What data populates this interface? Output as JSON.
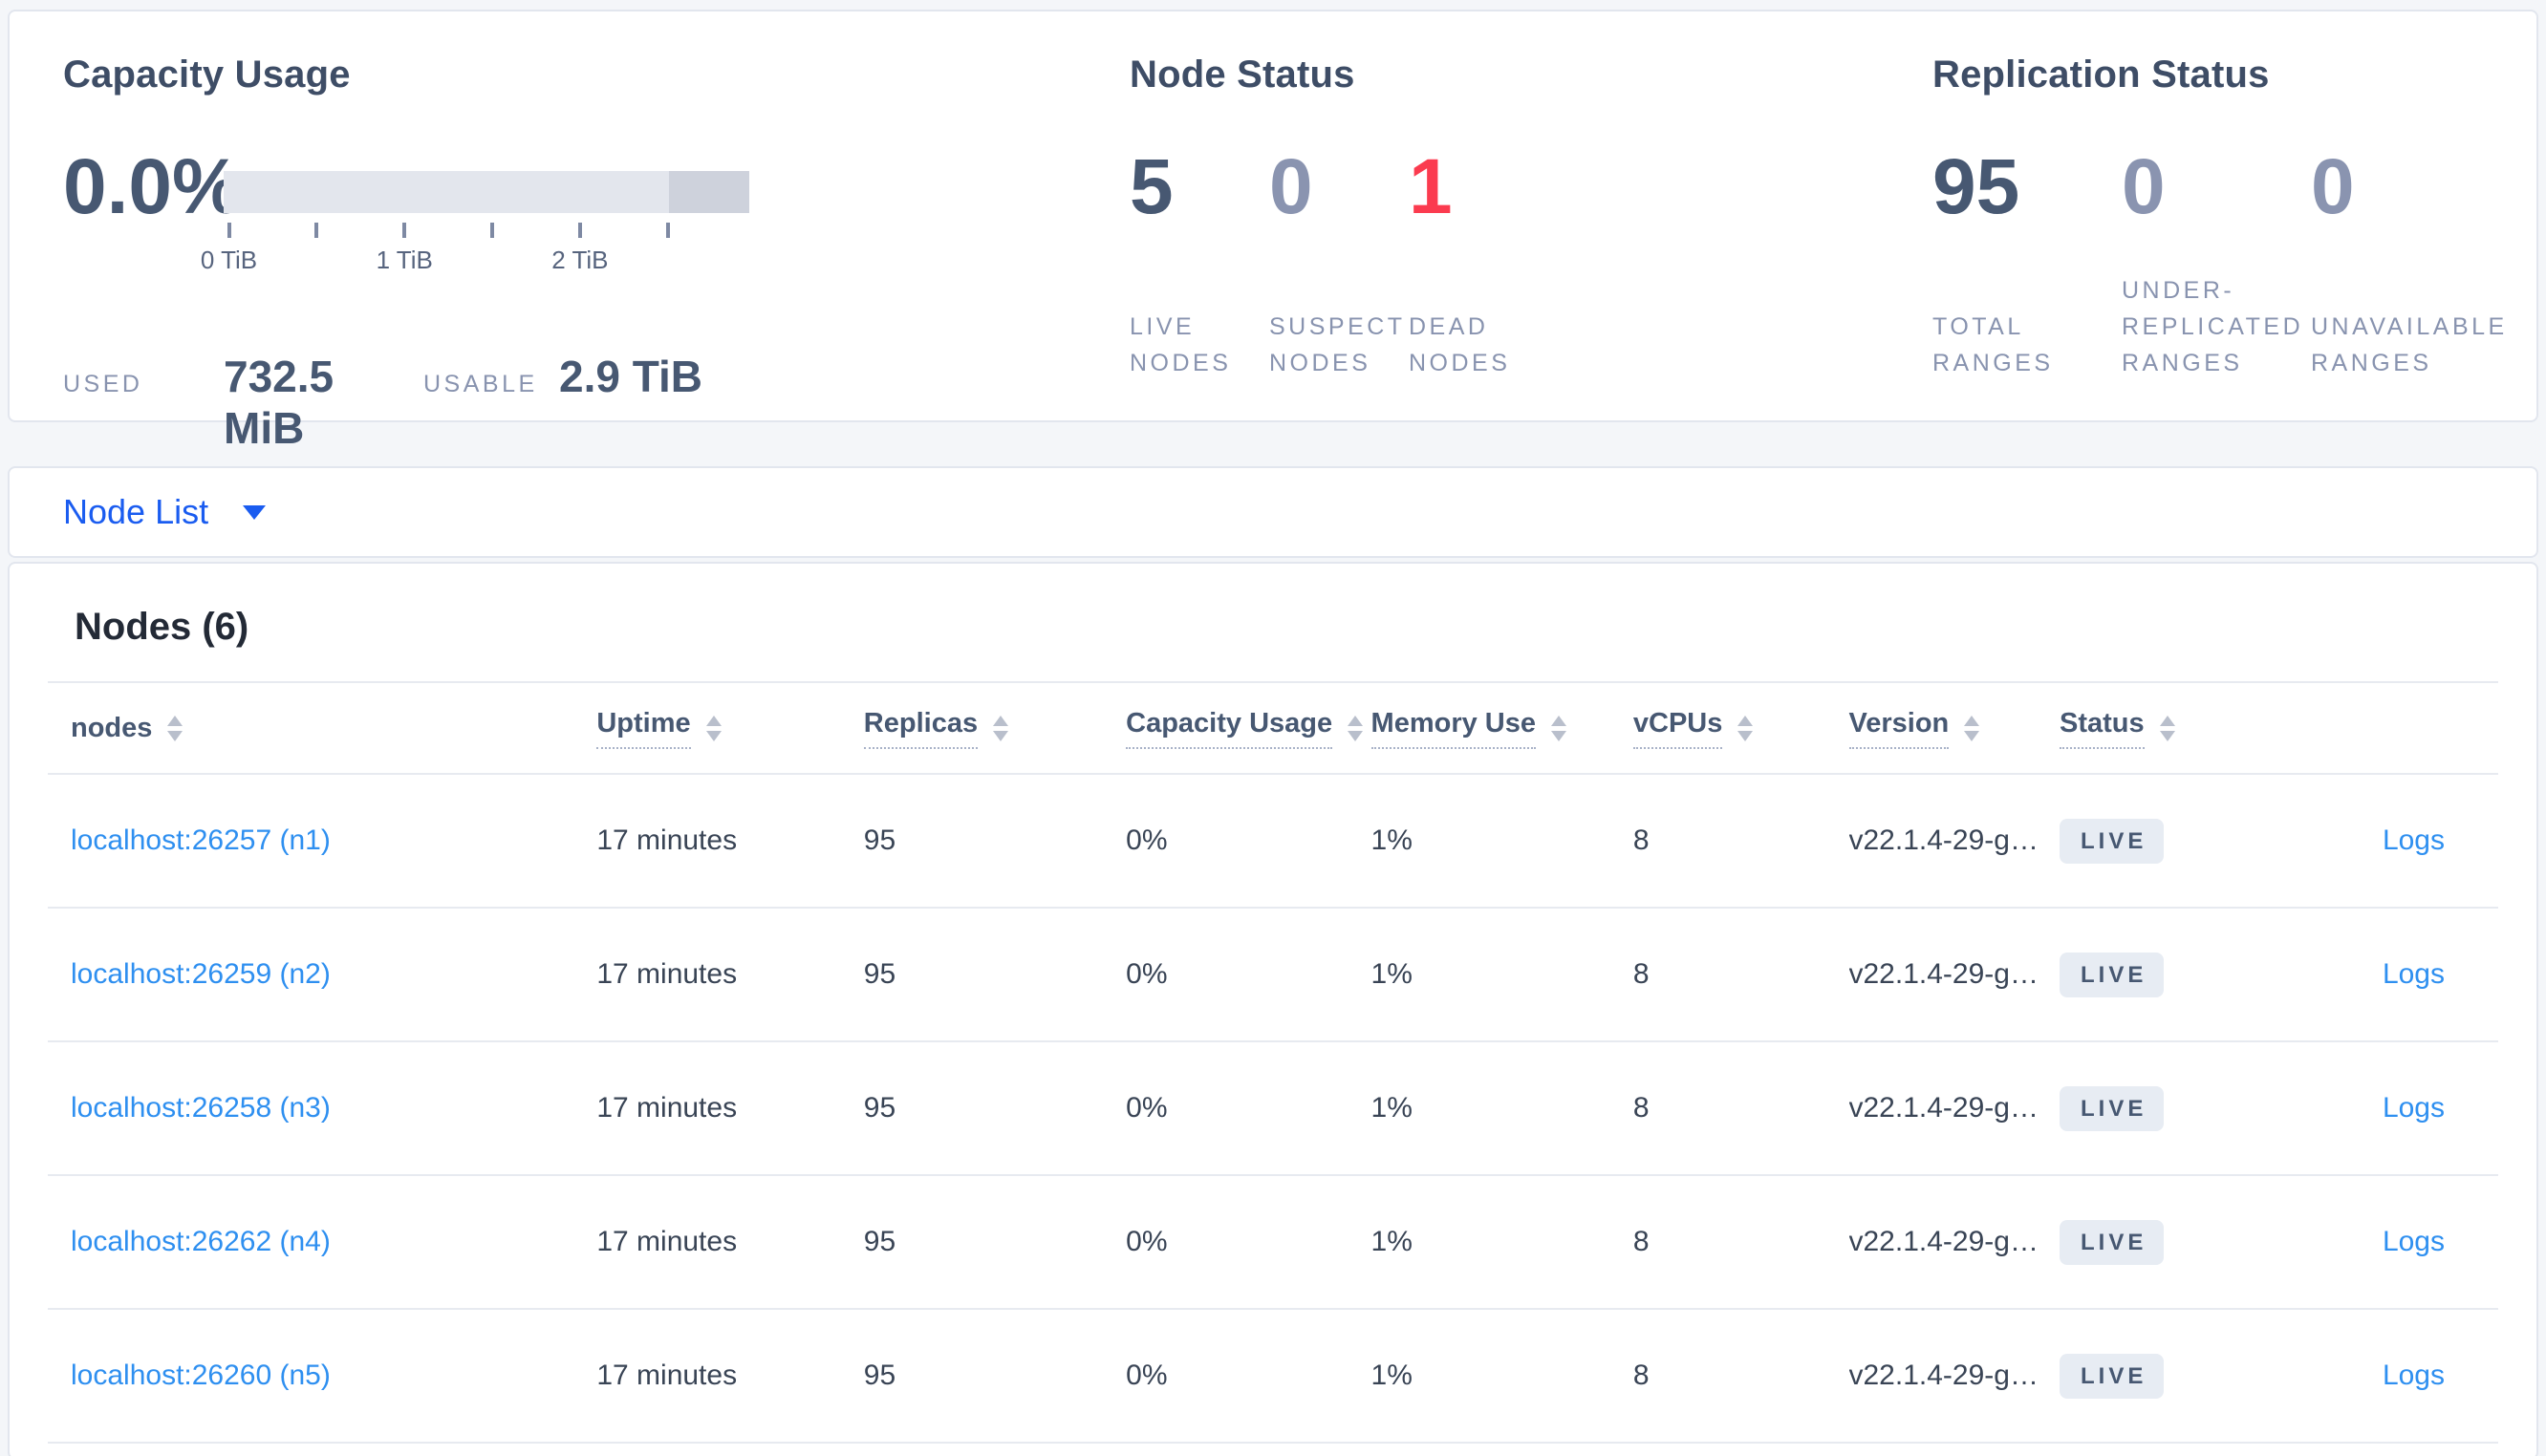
{
  "summary": {
    "capacity": {
      "title": "Capacity Usage",
      "percent": "0.0%",
      "bar": {
        "secondary_segment_pct": 15.3
      },
      "tick_marks_pct": [
        1,
        17.6,
        34.4,
        51.1,
        67.8,
        84.5
      ],
      "tick_labels": [
        {
          "text": "0 TiB",
          "pct": 1
        },
        {
          "text": "1 TiB",
          "pct": 34.4
        },
        {
          "text": "2 TiB",
          "pct": 67.8
        }
      ],
      "used_label": "USED",
      "used_value": "732.5 MiB",
      "usable_label": "USABLE",
      "usable_value": "2.9 TiB"
    },
    "node_status": {
      "title": "Node Status",
      "stats": [
        {
          "value": "5",
          "label": "LIVE NODES",
          "tone": "dark"
        },
        {
          "value": "0",
          "label": "SUSPECT NODES",
          "tone": "muted"
        },
        {
          "value": "1",
          "label": "DEAD NODES",
          "tone": "danger"
        }
      ]
    },
    "replication": {
      "title": "Replication Status",
      "stats": [
        {
          "value": "95",
          "label": "TOTAL RANGES",
          "tone": "dark"
        },
        {
          "value": "0",
          "label": "UNDER-REPLICATED RANGES",
          "tone": "muted"
        },
        {
          "value": "0",
          "label": "UNAVAILABLE RANGES",
          "tone": "muted"
        }
      ]
    }
  },
  "view_selector": {
    "label": "Node List"
  },
  "nodes_section": {
    "title": "Nodes (6)",
    "columns": [
      {
        "label": "nodes",
        "tooltip": false
      },
      {
        "label": "Uptime",
        "tooltip": true
      },
      {
        "label": "Replicas",
        "tooltip": true
      },
      {
        "label": "Capacity Usage",
        "tooltip": true
      },
      {
        "label": "Memory Use",
        "tooltip": true
      },
      {
        "label": "vCPUs",
        "tooltip": true
      },
      {
        "label": "Version",
        "tooltip": true
      },
      {
        "label": "Status",
        "tooltip": true
      },
      {
        "label": "",
        "tooltip": false
      }
    ],
    "rows": [
      {
        "node": "localhost:26257 (n1)",
        "uptime": "17 minutes",
        "replicas": "95",
        "capacity_usage": "0%",
        "memory_use": "1%",
        "vcpus": "8",
        "version": "v22.1.4-29-g…",
        "status": "LIVE",
        "logs_label": "Logs"
      },
      {
        "node": "localhost:26259 (n2)",
        "uptime": "17 minutes",
        "replicas": "95",
        "capacity_usage": "0%",
        "memory_use": "1%",
        "vcpus": "8",
        "version": "v22.1.4-29-g…",
        "status": "LIVE",
        "logs_label": "Logs"
      },
      {
        "node": "localhost:26258 (n3)",
        "uptime": "17 minutes",
        "replicas": "95",
        "capacity_usage": "0%",
        "memory_use": "1%",
        "vcpus": "8",
        "version": "v22.1.4-29-g…",
        "status": "LIVE",
        "logs_label": "Logs"
      },
      {
        "node": "localhost:26262 (n4)",
        "uptime": "17 minutes",
        "replicas": "95",
        "capacity_usage": "0%",
        "memory_use": "1%",
        "vcpus": "8",
        "version": "v22.1.4-29-g…",
        "status": "LIVE",
        "logs_label": "Logs"
      },
      {
        "node": "localhost:26260 (n5)",
        "uptime": "17 minutes",
        "replicas": "95",
        "capacity_usage": "0%",
        "memory_use": "1%",
        "vcpus": "8",
        "version": "v22.1.4-29-g…",
        "status": "LIVE",
        "logs_label": "Logs"
      }
    ]
  },
  "colors": {
    "page_bg": "#f4f6f9",
    "card_border": "#e2e6ee",
    "heading": "#3e4d66",
    "number_dark": "#475872",
    "number_muted": "#8a94b0",
    "number_danger": "#fb3b4f",
    "caps_label": "#8893af",
    "link_blue": "#2e8ff0",
    "selector_blue": "#1a5cf0",
    "bar_light": "#e3e6ed",
    "bar_dark": "#ced2dc",
    "tick": "#7e89a3",
    "tick_label": "#57647e",
    "table_text": "#394455",
    "header_text": "#475872",
    "row_border": "#e7eaf0",
    "badge_bg": "#e7ecf3",
    "badge_text": "#475872"
  }
}
